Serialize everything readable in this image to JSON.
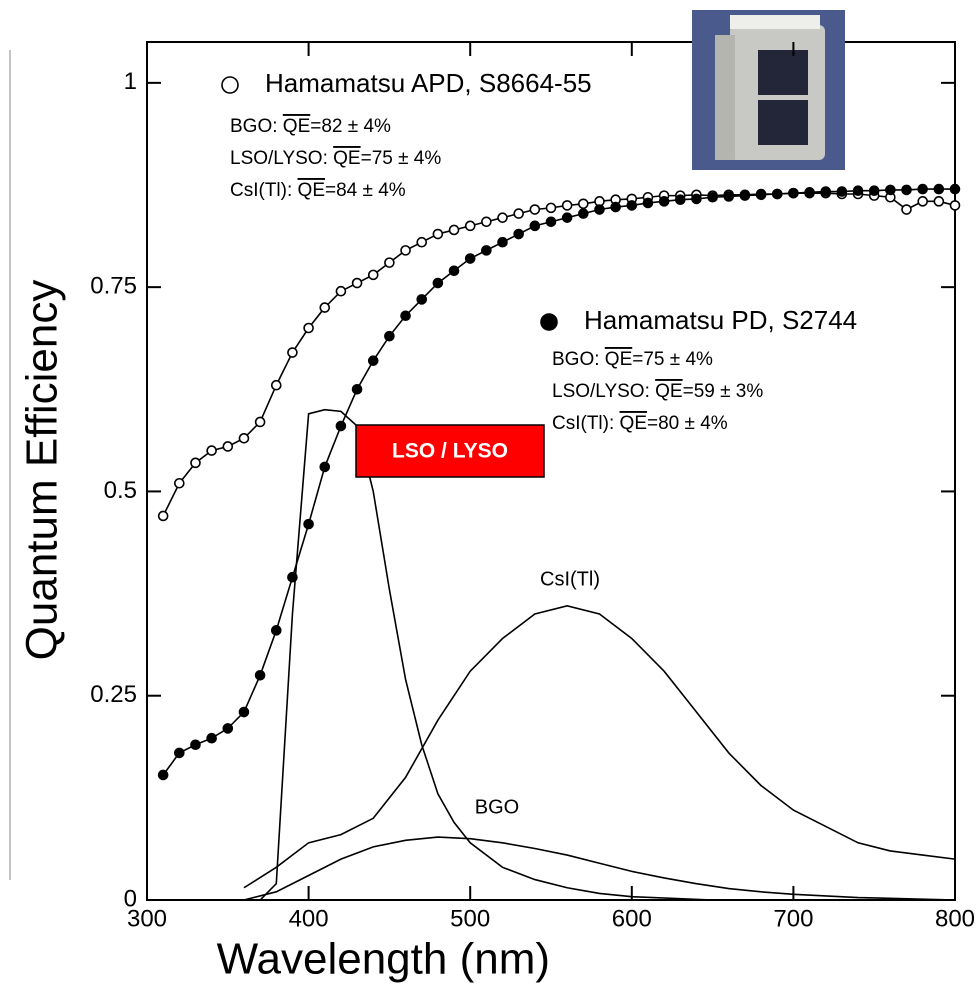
{
  "chart_data": {
    "type": "line",
    "x_label": "Wavelength (nm)",
    "y_label": "Quantum Efficiency",
    "xlim": [
      300,
      800
    ],
    "xticks": [
      300,
      400,
      500,
      600,
      700,
      800
    ],
    "ylim": [
      0,
      1.05
    ],
    "yticks": [
      0,
      0.25,
      0.5,
      0.75,
      1
    ],
    "series": [
      {
        "name": "Hamamatsu APD, S8664-55",
        "marker": "open",
        "color": "#000000",
        "notes": [
          [
            "BGO: ",
            "QE",
            "=82 ± 4%"
          ],
          [
            "LSO/LYSO: ",
            "QE",
            "=75 ± 4%"
          ],
          [
            "CsI(Tl): ",
            "QE",
            "=84 ± 4%"
          ]
        ],
        "x": [
          310,
          320,
          330,
          340,
          350,
          360,
          370,
          380,
          390,
          400,
          410,
          420,
          430,
          440,
          450,
          460,
          470,
          480,
          490,
          500,
          510,
          520,
          530,
          540,
          550,
          560,
          570,
          580,
          590,
          600,
          610,
          620,
          630,
          640,
          650,
          660,
          670,
          680,
          690,
          700,
          710,
          720,
          730,
          740,
          750,
          760,
          770,
          780,
          790,
          800
        ],
        "values": [
          0.47,
          0.51,
          0.535,
          0.55,
          0.555,
          0.565,
          0.585,
          0.63,
          0.67,
          0.7,
          0.725,
          0.745,
          0.755,
          0.765,
          0.78,
          0.795,
          0.805,
          0.815,
          0.82,
          0.825,
          0.83,
          0.835,
          0.84,
          0.845,
          0.847,
          0.85,
          0.852,
          0.855,
          0.857,
          0.858,
          0.86,
          0.862,
          0.862,
          0.863,
          0.862,
          0.863,
          0.863,
          0.864,
          0.864,
          0.865,
          0.865,
          0.865,
          0.864,
          0.864,
          0.862,
          0.86,
          0.845,
          0.855,
          0.855,
          0.85
        ]
      },
      {
        "name": "Hamamatsu PD, S2744",
        "marker": "filled",
        "color": "#000000",
        "notes": [
          [
            "BGO: ",
            "QE",
            "=75 ± 4%"
          ],
          [
            "LSO/LYSO: ",
            "QE",
            "=59 ± 3%"
          ],
          [
            "CsI(Tl): ",
            "QE",
            "=80 ± 4%"
          ]
        ],
        "x": [
          310,
          320,
          330,
          340,
          350,
          360,
          370,
          380,
          390,
          400,
          410,
          420,
          430,
          440,
          450,
          460,
          470,
          480,
          490,
          500,
          510,
          520,
          530,
          540,
          550,
          560,
          570,
          580,
          590,
          600,
          610,
          620,
          630,
          640,
          650,
          660,
          670,
          680,
          690,
          700,
          710,
          720,
          730,
          740,
          750,
          760,
          770,
          780,
          790,
          800
        ],
        "values": [
          0.153,
          0.18,
          0.19,
          0.198,
          0.21,
          0.23,
          0.275,
          0.33,
          0.395,
          0.46,
          0.53,
          0.58,
          0.625,
          0.66,
          0.69,
          0.715,
          0.735,
          0.755,
          0.77,
          0.785,
          0.795,
          0.805,
          0.815,
          0.825,
          0.83,
          0.835,
          0.84,
          0.845,
          0.848,
          0.85,
          0.853,
          0.855,
          0.857,
          0.858,
          0.86,
          0.861,
          0.862,
          0.863,
          0.864,
          0.865,
          0.866,
          0.867,
          0.867,
          0.868,
          0.868,
          0.869,
          0.869,
          0.87,
          0.87,
          0.87
        ]
      },
      {
        "name": "LSO / LYSO",
        "marker": "none",
        "color": "#000000",
        "x": [
          370,
          380,
          390,
          400,
          410,
          420,
          430,
          440,
          450,
          460,
          470,
          480,
          490,
          500,
          520,
          540,
          560,
          580,
          600,
          650
        ],
        "values": [
          0,
          0.02,
          0.35,
          0.595,
          0.6,
          0.598,
          0.58,
          0.5,
          0.38,
          0.27,
          0.19,
          0.13,
          0.095,
          0.07,
          0.04,
          0.025,
          0.015,
          0.008,
          0.004,
          0
        ]
      },
      {
        "name": "CsI(Tl)",
        "marker": "none",
        "color": "#000000",
        "x": [
          360,
          380,
          400,
          420,
          440,
          460,
          480,
          500,
          520,
          540,
          560,
          580,
          600,
          620,
          640,
          660,
          680,
          700,
          720,
          740,
          760,
          780,
          800
        ],
        "values": [
          0.015,
          0.04,
          0.07,
          0.08,
          0.1,
          0.15,
          0.22,
          0.28,
          0.32,
          0.35,
          0.36,
          0.35,
          0.32,
          0.28,
          0.23,
          0.18,
          0.14,
          0.11,
          0.09,
          0.07,
          0.06,
          0.055,
          0.05
        ]
      },
      {
        "name": "BGO",
        "marker": "none",
        "color": "#000000",
        "x": [
          360,
          380,
          400,
          420,
          440,
          460,
          480,
          500,
          520,
          540,
          560,
          580,
          600,
          620,
          640,
          660,
          680,
          700,
          740,
          800
        ],
        "values": [
          0,
          0.01,
          0.03,
          0.05,
          0.065,
          0.073,
          0.077,
          0.075,
          0.07,
          0.063,
          0.055,
          0.045,
          0.035,
          0.027,
          0.02,
          0.014,
          0.01,
          0.007,
          0.003,
          0
        ]
      }
    ]
  }
}
